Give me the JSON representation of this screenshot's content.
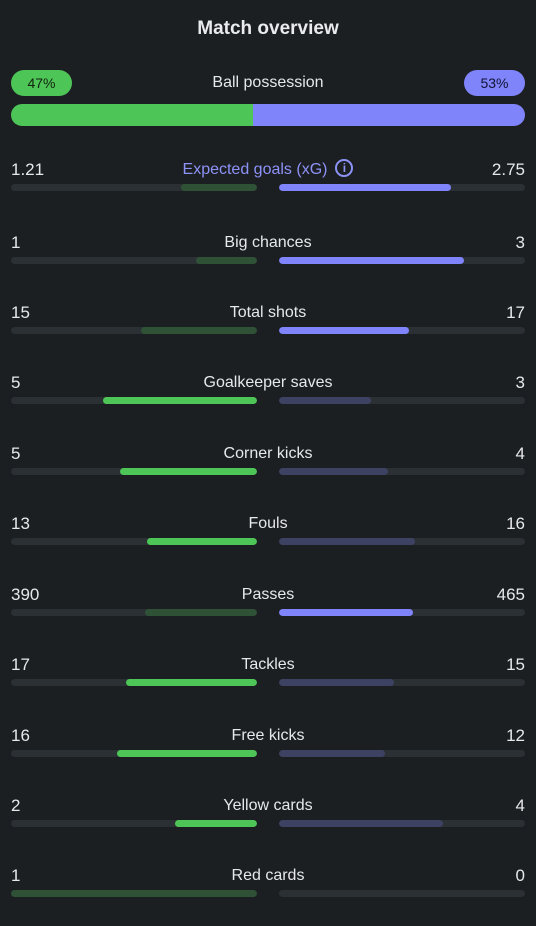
{
  "title": "Match overview",
  "possession": {
    "label": "Ball possession",
    "home": "47%",
    "away": "53%",
    "home_fraction": 0.47,
    "away_fraction": 0.53
  },
  "colors": {
    "home": "#4ec557",
    "home_dim": "#2f5237",
    "away": "#7f84fb",
    "away_dim": "#3d4263",
    "track": "#2b3035",
    "background": "#1c1f22"
  },
  "stats": [
    {
      "label": "Expected goals (xG)",
      "home": "1.21",
      "away": "2.75",
      "highlight": true,
      "icon": "info-icon",
      "home_fill": 0.31,
      "away_fill": 0.7,
      "home_win": false,
      "away_win": true
    },
    {
      "label": "Big chances",
      "home": "1",
      "away": "3",
      "home_fill": 0.25,
      "away_fill": 0.75,
      "home_win": false,
      "away_win": true
    },
    {
      "label": "Total shots",
      "home": "15",
      "away": "17",
      "home_fill": 0.47,
      "away_fill": 0.53,
      "home_win": false,
      "away_win": true
    },
    {
      "label": "Goalkeeper saves",
      "home": "5",
      "away": "3",
      "home_fill": 0.625,
      "away_fill": 0.375,
      "home_win": true,
      "away_win": false
    },
    {
      "label": "Corner kicks",
      "home": "5",
      "away": "4",
      "home_fill": 0.555,
      "away_fill": 0.445,
      "home_win": true,
      "away_win": false
    },
    {
      "label": "Fouls",
      "home": "13",
      "away": "16",
      "home_fill": 0.448,
      "away_fill": 0.552,
      "home_win": true,
      "away_win": false
    },
    {
      "label": "Passes",
      "home": "390",
      "away": "465",
      "home_fill": 0.456,
      "away_fill": 0.544,
      "home_win": false,
      "away_win": true
    },
    {
      "label": "Tackles",
      "home": "17",
      "away": "15",
      "home_fill": 0.531,
      "away_fill": 0.469,
      "home_win": true,
      "away_win": false
    },
    {
      "label": "Free kicks",
      "home": "16",
      "away": "12",
      "home_fill": 0.571,
      "away_fill": 0.429,
      "home_win": true,
      "away_win": false
    },
    {
      "label": "Yellow cards",
      "home": "2",
      "away": "4",
      "home_fill": 0.333,
      "away_fill": 0.667,
      "home_win": true,
      "away_win": false
    },
    {
      "label": "Red cards",
      "home": "1",
      "away": "0",
      "home_fill": 1.0,
      "away_fill": 0.0,
      "home_win": false,
      "away_win": false
    }
  ]
}
